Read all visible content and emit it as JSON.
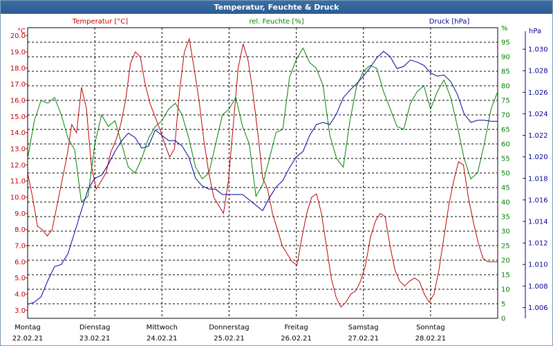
{
  "window": {
    "title": "Temperatur, Feuchte & Druck"
  },
  "chart_data": {
    "type": "line",
    "title": "Temperatur, Feuchte & Druck",
    "legend": [
      {
        "name": "Temperatur [°C]",
        "color": "#c00000"
      },
      {
        "name": "rel. Feuchte [%]",
        "color": "#008000"
      },
      {
        "name": "Druck [hPa]",
        "color": "#000099"
      }
    ],
    "axes": {
      "temperature": {
        "unit": "°C",
        "color": "#c00000",
        "min": 2.5,
        "max": 20.5,
        "ticks": [
          "20.0",
          "19.0",
          "18.0",
          "17.0",
          "16.0",
          "15.0",
          "14.0",
          "13.0",
          "12.0",
          "11.0",
          "10.0",
          "9.0",
          "8.0",
          "7.0",
          "6.0",
          "5.0",
          "4.0",
          "3.0"
        ]
      },
      "humidity": {
        "unit": "%",
        "color": "#008000",
        "min": 0,
        "max": 100,
        "ticks": [
          "%",
          "95",
          "90",
          "85",
          "80",
          "75",
          "70",
          "65",
          "60",
          "55",
          "50",
          "45",
          "40",
          "35",
          "30",
          "25",
          "20",
          "15",
          "10",
          "5",
          "0"
        ]
      },
      "pressure": {
        "unit": "hPa",
        "color": "#000099",
        "min": 1.005,
        "max": 1.032,
        "ticks": [
          "1.030",
          "1.028",
          "1.026",
          "1.024",
          "1.022",
          "1.020",
          "1.018",
          "1.016",
          "1.014",
          "1.012",
          "1.010",
          "1.008",
          "1.006"
        ]
      }
    },
    "x_labels": [
      {
        "day": "Montag",
        "date": "22.02.21"
      },
      {
        "day": "Dienstag",
        "date": "23.02.21"
      },
      {
        "day": "Mittwoch",
        "date": "24.02.21"
      },
      {
        "day": "Donnerstag",
        "date": "25.02.21"
      },
      {
        "day": "Freitag",
        "date": "26.02.21"
      },
      {
        "day": "Samstag",
        "date": "27.02.21"
      },
      {
        "day": "Sonntag",
        "date": "28.02.21"
      }
    ],
    "x_range_days": [
      0,
      7
    ],
    "grid": true,
    "series": [
      {
        "name": "Temperatur [°C]",
        "axis": "temperature",
        "x": [
          0.0,
          0.05,
          0.1,
          0.15,
          0.2,
          0.25,
          0.3,
          0.35,
          0.4,
          0.45,
          0.5,
          0.55,
          0.6,
          0.65,
          0.7,
          0.75,
          0.8,
          0.85,
          0.9,
          0.95,
          1.0,
          1.05,
          1.1,
          1.15,
          1.2,
          1.25,
          1.3,
          1.35,
          1.4,
          1.45,
          1.5,
          1.55,
          1.6,
          1.65,
          1.7,
          1.75,
          1.8,
          1.85,
          1.9,
          1.95,
          2.0,
          2.05,
          2.1,
          2.15,
          2.2,
          2.25,
          2.3,
          2.35,
          2.4,
          2.45,
          2.5,
          2.55,
          2.6,
          2.65,
          2.7,
          2.75,
          2.8,
          2.85,
          2.9,
          2.95,
          3.0,
          3.05,
          3.1,
          3.15,
          3.2,
          3.25,
          3.3,
          3.35,
          3.4,
          3.45,
          3.5,
          3.55,
          3.6,
          3.65,
          3.7,
          3.75,
          3.8,
          3.85,
          3.9,
          3.95,
          4.0,
          4.05,
          4.1,
          4.15,
          4.2,
          4.25,
          4.3,
          4.35,
          4.4,
          4.45,
          4.5,
          4.55,
          4.6,
          4.65,
          4.7,
          4.75,
          4.8,
          4.85,
          4.9,
          4.95,
          5.0,
          5.05,
          5.1,
          5.15,
          5.2,
          5.25,
          5.3,
          5.35,
          5.4,
          5.45,
          5.5,
          5.55,
          5.6,
          5.65,
          5.7,
          5.75,
          5.8,
          5.85,
          5.9,
          5.95,
          6.0,
          6.05,
          6.1,
          6.15,
          6.2,
          6.25,
          6.3,
          6.35,
          6.4,
          6.45,
          6.5,
          6.55,
          6.6,
          6.65,
          6.7,
          6.75,
          6.8,
          6.85,
          6.9,
          6.95,
          7.0
        ],
        "values": [
          11.5,
          10.0,
          8.2,
          8.0,
          7.6,
          8.0,
          9.5,
          11.0,
          12.5,
          14.5,
          14.0,
          16.8,
          15.5,
          12.0,
          10.5,
          11.0,
          11.5,
          12.8,
          13.5,
          14.5,
          16.0,
          18.3,
          19.0,
          18.7,
          17.0,
          15.8,
          15.0,
          14.2,
          13.3,
          12.5,
          13.0,
          16.5,
          19.0,
          19.8,
          18.0,
          16.0,
          13.5,
          11.5,
          10.0,
          9.5,
          9.0,
          11.0,
          14.5,
          18.0,
          19.5,
          18.5,
          16.5,
          14.0,
          11.2,
          10.5,
          9.0,
          8.0,
          7.0,
          6.5,
          6.0,
          5.8,
          7.5,
          9.0,
          10.0,
          10.2,
          9.0,
          7.0,
          5.0,
          3.8,
          3.2,
          3.5,
          4.0,
          4.2,
          4.8,
          5.8,
          7.5,
          8.5,
          9.0,
          8.8,
          7.0,
          5.5,
          4.8,
          4.5,
          4.8,
          5.0,
          4.8,
          4.0,
          3.5,
          4.0,
          5.5,
          7.5,
          9.5,
          11.0,
          12.2,
          12.0,
          10.0,
          8.5,
          7.2,
          6.2,
          6.0,
          6.0,
          6.0,
          6.0,
          6.0,
          6.0,
          6.0,
          6.0,
          6.0,
          6.0,
          6.0,
          6.0,
          6.0,
          6.0,
          6.0,
          6.0,
          6.0,
          6.0,
          6.0,
          6.0,
          6.0,
          6.0,
          6.0,
          6.0,
          6.0,
          6.0,
          6.0,
          6.0,
          6.0,
          6.0,
          6.0,
          6.0,
          6.0,
          6.0,
          6.0,
          6.0,
          6.0,
          6.0,
          6.0,
          6.0,
          6.0,
          6.0,
          6.0,
          6.0,
          6.0,
          6.0,
          6.0
        ]
      },
      {
        "name": "rel. Feuchte [%]",
        "axis": "humidity",
        "x": [
          0.0,
          0.1,
          0.2,
          0.3,
          0.4,
          0.5,
          0.6,
          0.7,
          0.8,
          0.9,
          1.0,
          1.1,
          1.2,
          1.3,
          1.4,
          1.5,
          1.6,
          1.7,
          1.8,
          1.9,
          2.0,
          2.1,
          2.2,
          2.3,
          2.4,
          2.5,
          2.6,
          2.7,
          2.8,
          2.9,
          3.0,
          3.1,
          3.2,
          3.3,
          3.4,
          3.5,
          3.6,
          3.7,
          3.8,
          3.9,
          4.0,
          4.1,
          4.2,
          4.3,
          4.4,
          4.5,
          4.6,
          4.7,
          4.8,
          4.9,
          5.0,
          5.1,
          5.2,
          5.3,
          5.4,
          5.5,
          5.6,
          5.7,
          5.8,
          5.9,
          6.0,
          6.1,
          6.2,
          6.3,
          6.4,
          6.5,
          6.6,
          6.7,
          6.8,
          6.9,
          7.0
        ],
        "values": [
          55,
          68,
          75,
          74,
          76,
          70,
          62,
          58,
          40,
          42,
          60,
          70,
          66,
          68,
          60,
          52,
          50,
          55,
          62,
          66,
          68,
          72,
          74,
          70,
          62,
          52,
          48,
          50,
          60,
          70,
          72,
          76,
          66,
          60,
          42,
          46,
          55,
          64,
          65,
          83,
          89,
          93,
          88,
          86,
          80,
          63,
          55,
          52,
          68,
          80,
          85,
          87,
          86,
          78,
          72,
          66,
          65,
          74,
          78,
          80,
          72,
          78,
          82,
          76,
          66,
          55,
          48,
          50,
          60,
          72,
          78
        ]
      },
      {
        "name": "Druck [hPa]",
        "axis": "pressure",
        "x": [
          0.0,
          0.1,
          0.2,
          0.3,
          0.4,
          0.5,
          0.6,
          0.7,
          0.8,
          0.9,
          1.0,
          1.1,
          1.2,
          1.3,
          1.4,
          1.5,
          1.6,
          1.7,
          1.8,
          1.9,
          2.0,
          2.1,
          2.2,
          2.3,
          2.4,
          2.5,
          2.6,
          2.7,
          2.8,
          2.9,
          3.0,
          3.1,
          3.2,
          3.3,
          3.4,
          3.5,
          3.6,
          3.7,
          3.8,
          3.9,
          4.0,
          4.1,
          4.2,
          4.3,
          4.4,
          4.5,
          4.6,
          4.7,
          4.8,
          4.9,
          5.0,
          5.1,
          5.2,
          5.3,
          5.4,
          5.5,
          5.6,
          5.7,
          5.8,
          5.9,
          6.0,
          6.1,
          6.2,
          6.3,
          6.4,
          6.5,
          6.6,
          6.7,
          6.8,
          6.9,
          7.0
        ],
        "values": [
          1.0063,
          1.0065,
          1.007,
          1.0085,
          1.0098,
          1.01,
          1.011,
          1.013,
          1.015,
          1.017,
          1.018,
          1.0183,
          1.0193,
          1.0205,
          1.0215,
          1.0222,
          1.0218,
          1.0208,
          1.021,
          1.0225,
          1.022,
          1.0215,
          1.0215,
          1.021,
          1.02,
          1.018,
          1.0173,
          1.017,
          1.017,
          1.0165,
          1.0165,
          1.0165,
          1.0165,
          1.016,
          1.0155,
          1.015,
          1.0162,
          1.0172,
          1.0178,
          1.019,
          1.02,
          1.0205,
          1.022,
          1.023,
          1.0232,
          1.023,
          1.024,
          1.0255,
          1.0262,
          1.0268,
          1.0275,
          1.0283,
          1.0292,
          1.0298,
          1.0293,
          1.0282,
          1.0284,
          1.029,
          1.0288,
          1.0285,
          1.0278,
          1.0275,
          1.0276,
          1.027,
          1.0258,
          1.024,
          1.0232,
          1.0234,
          1.0234,
          1.0233,
          1.0233
        ]
      }
    ]
  }
}
